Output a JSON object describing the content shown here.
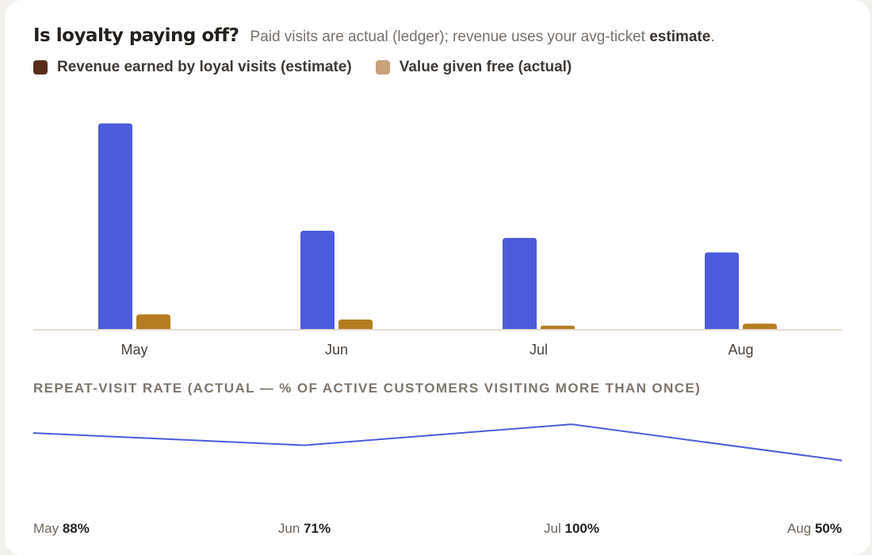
{
  "header": {
    "title": "Is loyalty paying off?",
    "subtitle_pre": "Paid visits are actual (ledger); revenue uses your avg-ticket ",
    "subtitle_bold": "estimate",
    "subtitle_post": "."
  },
  "colors": {
    "revenue_bar": "#4b5bdc",
    "free_bar": "#b57d1f",
    "legend_revenue": "#5a2d1a",
    "legend_free": "#c8a07a",
    "rate_line": "#4b5bdc",
    "baseline": "#e6ddd4"
  },
  "chart_data": [
    {
      "type": "bar",
      "categories": [
        "May",
        "Jun",
        "Jul",
        "Aug"
      ],
      "series": [
        {
          "name": "Revenue earned by loyal visits (estimate)",
          "values": [
            100,
            48,
            44.5,
            37.5
          ]
        },
        {
          "name": "Value given free (actual)",
          "values": [
            7.5,
            5,
            2,
            3
          ]
        }
      ],
      "ylim": [
        0,
        106
      ],
      "legend": "top-left",
      "grid": false
    },
    {
      "type": "line",
      "title": "REPEAT-VISIT RATE (ACTUAL — % OF ACTIVE CUSTOMERS VISITING MORE THAN ONCE)",
      "x": [
        "May",
        "Jun",
        "Jul",
        "Aug"
      ],
      "series": [
        {
          "values": [
            88,
            71,
            100,
            50
          ]
        }
      ],
      "point_labels": [
        "88%",
        "71%",
        "100%",
        "50%"
      ],
      "ylim": [
        -15,
        110
      ],
      "grid": false
    }
  ]
}
